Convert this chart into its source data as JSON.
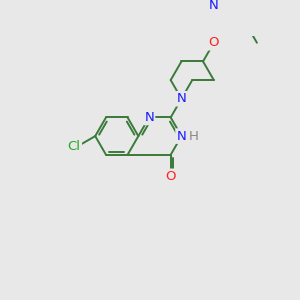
{
  "background_color": "#e8e8e8",
  "bond_color": "#3a7a3a",
  "atom_colors": {
    "N": "#1a1aff",
    "O": "#ff2222",
    "Cl": "#22aa22",
    "H": "#888888",
    "C": "#3a7a3a"
  },
  "figsize": [
    3.0,
    3.0
  ],
  "dpi": 100
}
